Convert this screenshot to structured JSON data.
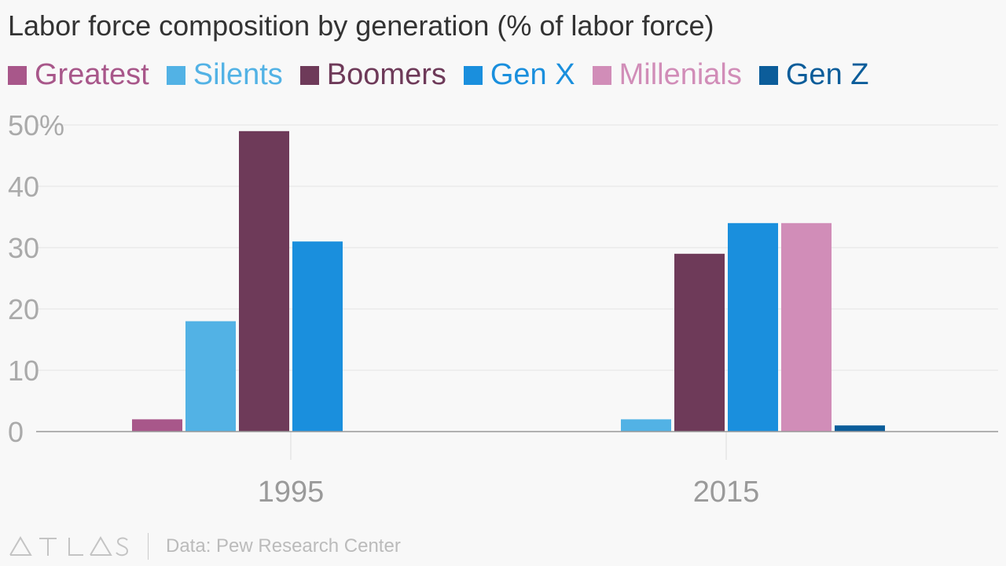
{
  "title": "Labor force composition by generation (% of labor force)",
  "footer": {
    "brand": "ATLAS",
    "source": "Data: Pew Research Center"
  },
  "chart_data": {
    "type": "bar",
    "title": "Labor force composition by generation (% of labor force)",
    "categories": [
      "1995",
      "2015"
    ],
    "series": [
      {
        "name": "Greatest",
        "color": "#a8578a",
        "values": [
          2,
          0
        ]
      },
      {
        "name": "Silents",
        "color": "#52b2e5",
        "values": [
          18,
          2
        ]
      },
      {
        "name": "Boomers",
        "color": "#6e3a59",
        "values": [
          49,
          29
        ]
      },
      {
        "name": "Gen X",
        "color": "#1a8fdd",
        "values": [
          31,
          34
        ]
      },
      {
        "name": "Millenials",
        "color": "#d18db8",
        "values": [
          0,
          34
        ]
      },
      {
        "name": "Gen Z",
        "color": "#0c5d9a",
        "values": [
          0,
          1
        ]
      }
    ],
    "ylim": [
      0,
      50
    ],
    "yticks": [
      0,
      10,
      20,
      30,
      40,
      50
    ],
    "ytick_labels": [
      "0",
      "10",
      "20",
      "30",
      "40",
      "50%"
    ],
    "xlabel": "",
    "ylabel": "",
    "grid": true,
    "legend": "top-left"
  }
}
